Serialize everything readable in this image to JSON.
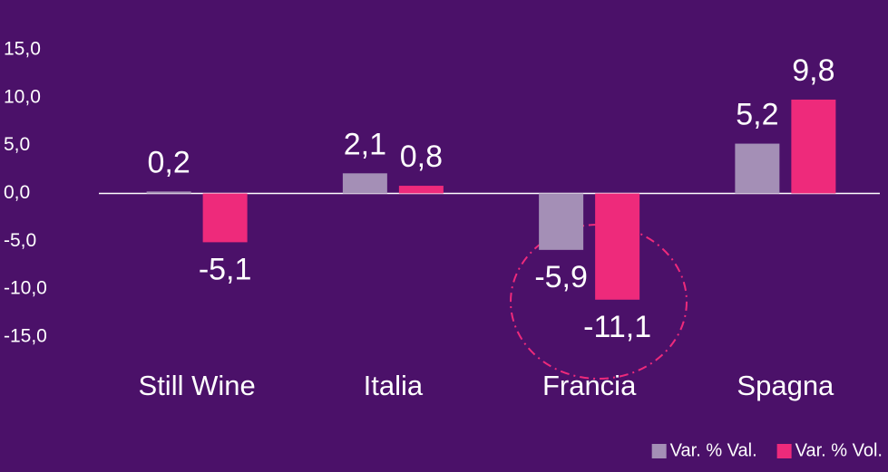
{
  "chart_data": {
    "type": "bar",
    "categories": [
      "Still Wine",
      "Italia",
      "Francia",
      "Spagna"
    ],
    "series": [
      {
        "name": "Var. % Val.",
        "color": "#a48fb6",
        "values": [
          0.2,
          2.1,
          -5.9,
          5.2
        ],
        "value_labels": [
          "0,2",
          "2,1",
          "-5,9",
          "5,2"
        ]
      },
      {
        "name": "Var. % Vol.",
        "color": "#ee2a7b",
        "values": [
          -5.1,
          0.8,
          -11.1,
          9.8
        ],
        "value_labels": [
          "-5,1",
          "0,8",
          "-11,1",
          "9,8"
        ]
      }
    ],
    "ylim": [
      -15,
      15
    ],
    "yticks": [
      {
        "value": 15,
        "label": "15,0"
      },
      {
        "value": 10,
        "label": "10,0"
      },
      {
        "value": 5,
        "label": "5,0"
      },
      {
        "value": 0,
        "label": "0,0"
      },
      {
        "value": -5,
        "label": "-5,0"
      },
      {
        "value": -10,
        "label": "-10,0"
      },
      {
        "value": -15,
        "label": "-15,0"
      }
    ],
    "legend": "bottom-right"
  }
}
